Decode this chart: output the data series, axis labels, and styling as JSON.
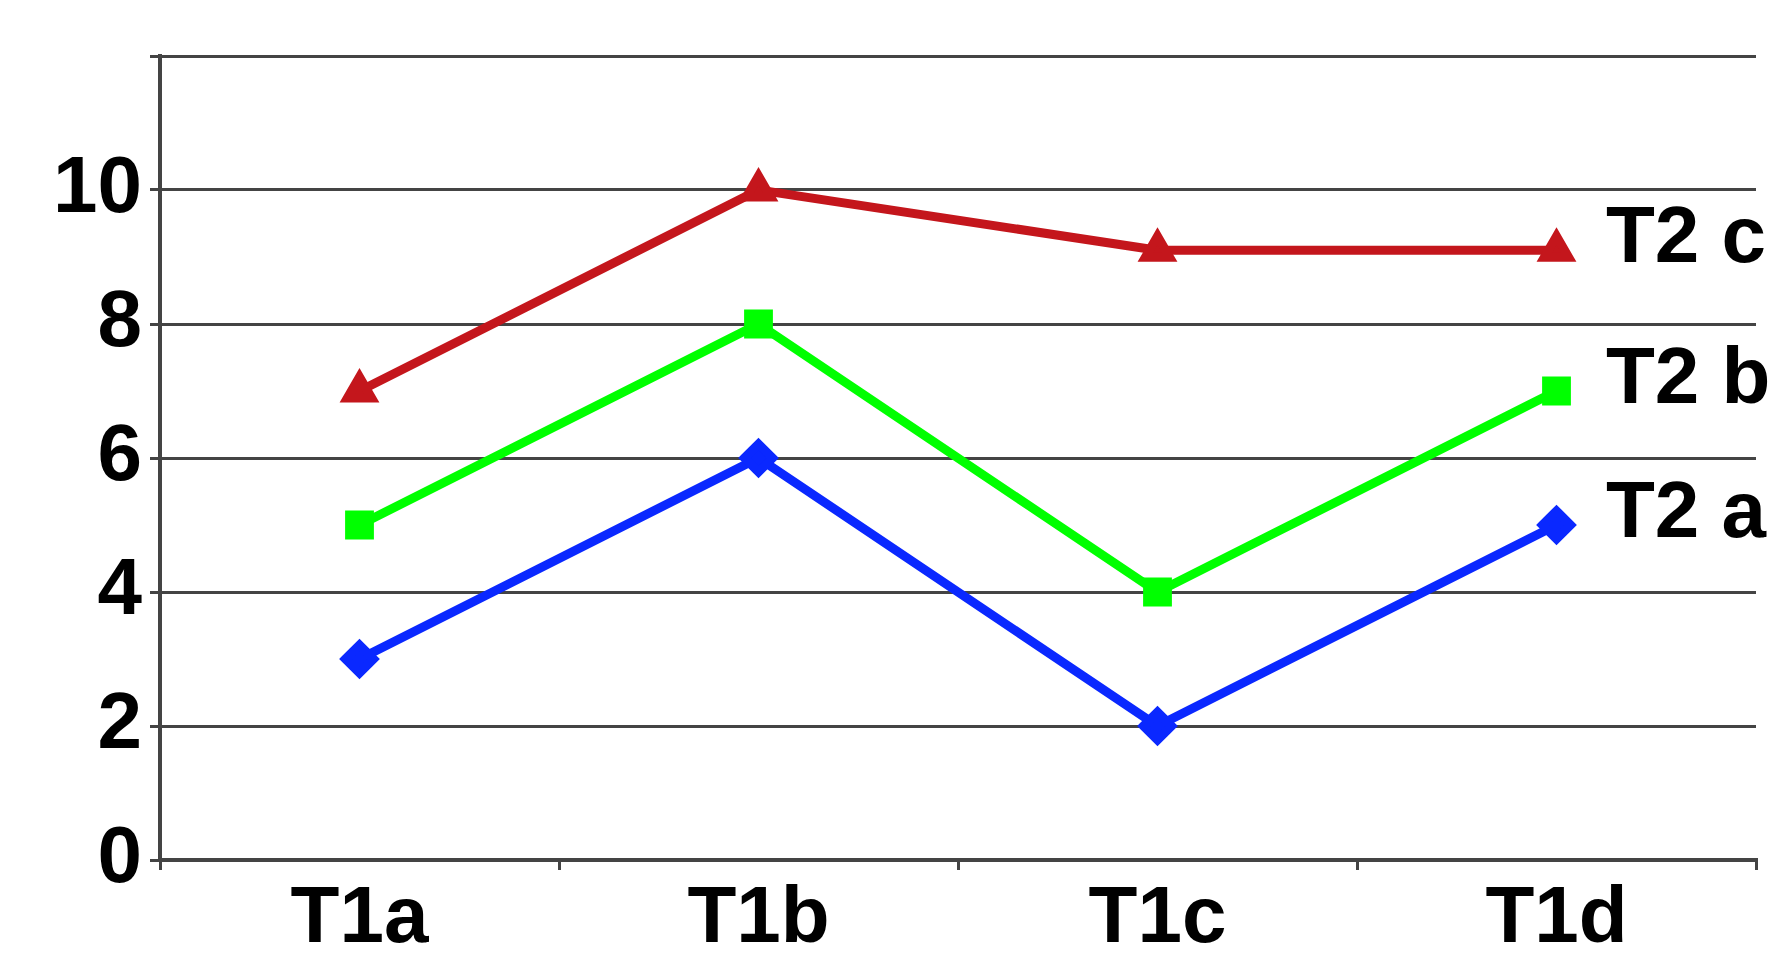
{
  "chart_data": {
    "type": "line",
    "categories": [
      "T1a",
      "T1b",
      "T1c",
      "T1d"
    ],
    "series": [
      {
        "name": "T2 a",
        "color": "#0a28ff",
        "values": [
          3,
          6,
          2,
          5
        ],
        "marker": "diamond"
      },
      {
        "name": "T2 b",
        "color": "#00ff00",
        "values": [
          5,
          8,
          4,
          7
        ],
        "marker": "square"
      },
      {
        "name": "T2 c",
        "color": "#c4161c",
        "values": [
          7,
          10,
          9.1,
          9.1
        ],
        "marker": "triangle"
      }
    ],
    "ylim": [
      0,
      12
    ],
    "yticks": [
      0,
      2,
      4,
      6,
      8,
      10,
      {
        "value": 12,
        "label": null
      }
    ],
    "grid": "y",
    "legend": false,
    "line_style": "solid"
  }
}
